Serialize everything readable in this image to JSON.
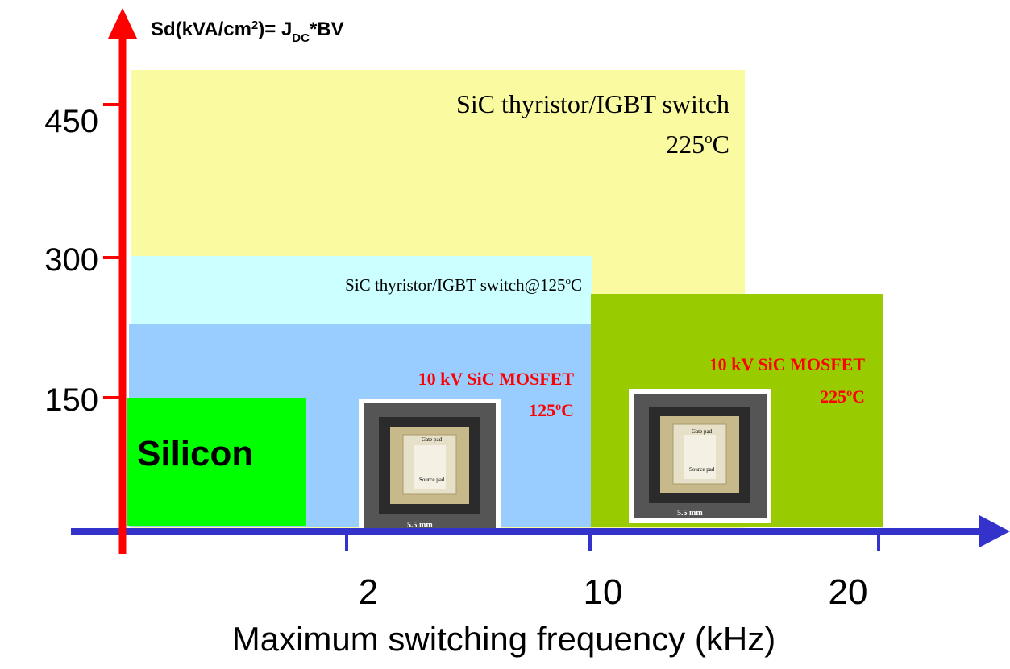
{
  "y_axis": {
    "label": {
      "main": "Sd(kVA/cm",
      "sup": "2",
      "mid": ")= J",
      "sub": "DC",
      "end": "*BV"
    },
    "ticks": [
      "450",
      "300",
      "150"
    ]
  },
  "x_axis": {
    "title": "Maximum switching frequency (kHz)",
    "ticks": [
      "2",
      "10",
      "20"
    ]
  },
  "regions": {
    "sic_225": {
      "line1": "SiC thyristor/IGBT switch",
      "temp": "225",
      "deg": "o",
      "unit": "C"
    },
    "sic_125": {
      "text": "SiC thyristor/IGBT switch@125",
      "deg": "o",
      "unit": "C"
    },
    "mosfet_125": {
      "line1": "10 kV SiC MOSFET",
      "temp": "125",
      "deg": "o",
      "unit": "C"
    },
    "mosfet_225": {
      "line1": "10 kV SiC MOSFET",
      "temp": "225",
      "deg": "o",
      "unit": "C"
    },
    "silicon": {
      "text": "Silicon"
    }
  },
  "chip": {
    "gate": "Gate pad",
    "source": "Source pad",
    "dim": "5.5 mm"
  }
}
